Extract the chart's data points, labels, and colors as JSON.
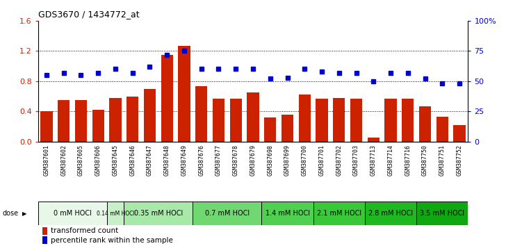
{
  "title": "GDS3670 / 1434772_at",
  "samples": [
    "GSM387601",
    "GSM387602",
    "GSM387605",
    "GSM387606",
    "GSM387645",
    "GSM387646",
    "GSM387647",
    "GSM387648",
    "GSM387649",
    "GSM387676",
    "GSM387677",
    "GSM387678",
    "GSM387679",
    "GSM387698",
    "GSM387699",
    "GSM387700",
    "GSM387701",
    "GSM387702",
    "GSM387703",
    "GSM387713",
    "GSM387714",
    "GSM387716",
    "GSM387750",
    "GSM387751",
    "GSM387752"
  ],
  "bar_values": [
    0.4,
    0.55,
    0.55,
    0.42,
    0.58,
    0.6,
    0.7,
    1.15,
    1.27,
    0.73,
    0.57,
    0.57,
    0.65,
    0.32,
    0.36,
    0.62,
    0.57,
    0.58,
    0.57,
    0.05,
    0.57,
    0.57,
    0.47,
    0.33,
    0.22
  ],
  "dot_values": [
    55,
    57,
    55,
    57,
    60,
    57,
    62,
    72,
    75,
    60,
    60,
    60,
    60,
    52,
    53,
    60,
    58,
    57,
    57,
    50,
    57,
    57,
    52,
    48,
    48
  ],
  "groups": [
    {
      "label": "0 mM HOCl",
      "count": 4,
      "color": "#e8f8e8"
    },
    {
      "label": "0.14 mM HOCl",
      "count": 1,
      "color": "#c8f0c8"
    },
    {
      "label": "0.35 mM HOCl",
      "count": 4,
      "color": "#a8e8a8"
    },
    {
      "label": "0.7 mM HOCl",
      "count": 4,
      "color": "#70d870"
    },
    {
      "label": "1.4 mM HOCl",
      "count": 3,
      "color": "#50d050"
    },
    {
      "label": "2.1 mM HOCl",
      "count": 3,
      "color": "#38c838"
    },
    {
      "label": "2.8 mM HOCl",
      "count": 3,
      "color": "#20b820"
    },
    {
      "label": "3.5 mM HOCl",
      "count": 3,
      "color": "#10a810"
    }
  ],
  "bar_color": "#cc2200",
  "dot_color": "#0000cc",
  "ylim_left": [
    0,
    1.6
  ],
  "ylim_right": [
    0,
    100
  ],
  "yticks_left": [
    0,
    0.4,
    0.8,
    1.2,
    1.6
  ],
  "yticks_right": [
    0,
    25,
    50,
    75,
    100
  ],
  "ytick_labels_right": [
    "0",
    "25",
    "50",
    "75",
    "100%"
  ],
  "grid_vals": [
    0.4,
    0.8,
    1.2
  ],
  "label_bg": "#d4d4d4",
  "label_border": "#aaaaaa",
  "dose_label": "dose"
}
